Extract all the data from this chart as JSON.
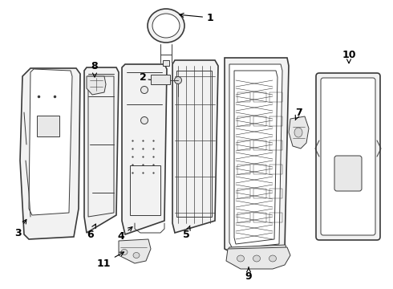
{
  "bg_color": "#ffffff",
  "line_color": "#3a3a3a",
  "label_color": "#000000",
  "lw_main": 1.2,
  "lw_thin": 0.7,
  "lw_xtra": 0.4,
  "figsize": [
    4.9,
    3.6
  ],
  "dpi": 100
}
